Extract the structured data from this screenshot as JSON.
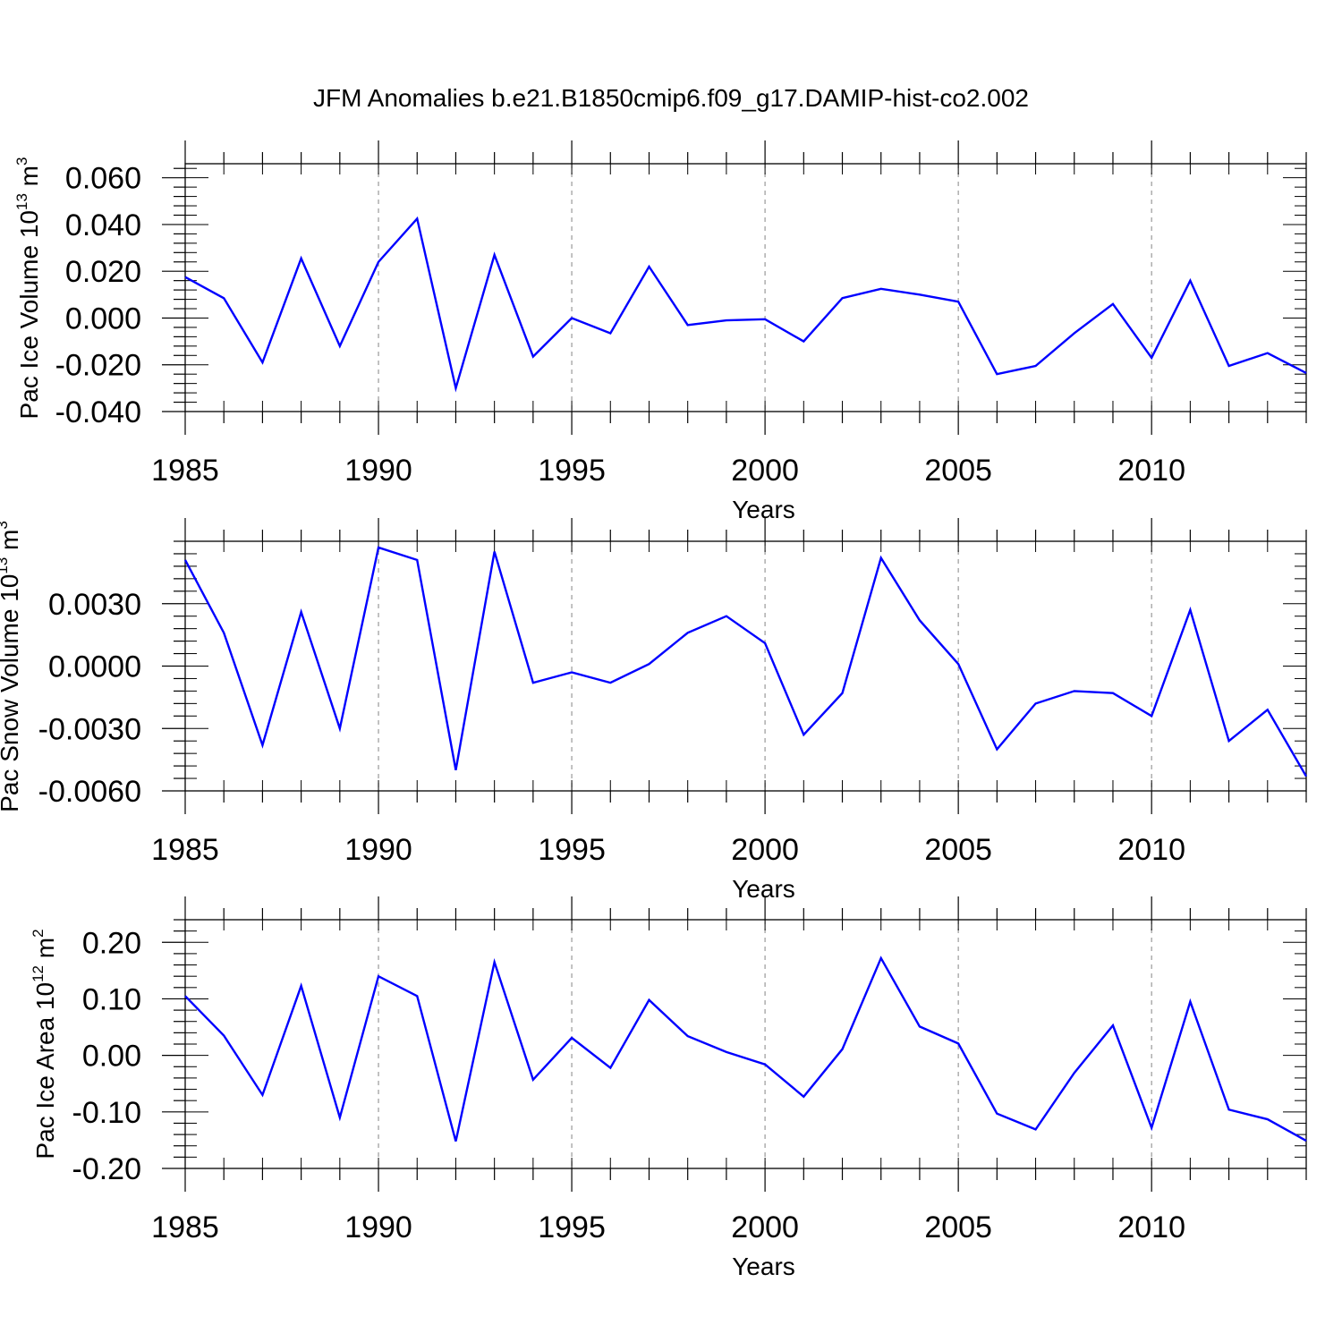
{
  "title": "JFM Anomalies b.e21.B1850cmip6.f09_g17.DAMIP-hist-co2.002",
  "colors": {
    "series": "#0000ff",
    "axis": "#000000",
    "grid": "#999999"
  },
  "chart_data": [
    {
      "type": "line",
      "ylabel": {
        "prefix": "Pac Ice Volume 10",
        "sup": "13",
        "mid": " m",
        "sup2": "3"
      },
      "xlabel": "Years",
      "xlim": [
        1985,
        2014
      ],
      "ylim": [
        -0.04,
        0.066
      ],
      "yticks": [
        -0.04,
        -0.02,
        0.0,
        0.02,
        0.04,
        0.06
      ],
      "ytick_labels": [
        "-0.040",
        "-0.020",
        "0.000",
        "0.020",
        "0.040",
        "0.060"
      ],
      "xticks": [
        1985,
        1990,
        1995,
        2000,
        2005,
        2010
      ],
      "xtick_labels": [
        "1985",
        "1990",
        "1995",
        "2000",
        "2005",
        "2010"
      ],
      "grid_x": [
        1990,
        1995,
        2000,
        2005,
        2010
      ],
      "x": [
        1985,
        1986,
        1987,
        1988,
        1989,
        1990,
        1991,
        1992,
        1993,
        1994,
        1995,
        1996,
        1997,
        1998,
        1999,
        2000,
        2001,
        2002,
        2003,
        2004,
        2005,
        2006,
        2007,
        2008,
        2009,
        2010,
        2011,
        2012,
        2013,
        2014
      ],
      "series": [
        {
          "values": [
            0.0175,
            0.0085,
            -0.019,
            0.0255,
            -0.012,
            0.024,
            0.0425,
            -0.03,
            0.027,
            -0.0165,
            0.0,
            -0.0065,
            0.022,
            -0.003,
            -0.001,
            -0.0005,
            -0.01,
            0.0085,
            0.0125,
            0.01,
            0.007,
            -0.024,
            -0.0205,
            -0.0065,
            0.006,
            -0.017,
            0.016,
            -0.0205,
            -0.015,
            -0.0235
          ]
        }
      ]
    },
    {
      "type": "line",
      "ylabel": {
        "prefix": "Pac Snow Volume 10",
        "sup": "13",
        "mid": " m",
        "sup2": "3"
      },
      "xlabel": "Years",
      "xlim": [
        1985,
        2014
      ],
      "ylim": [
        -0.006,
        0.006
      ],
      "yticks": [
        -0.006,
        -0.003,
        0.0,
        0.003
      ],
      "ytick_labels": [
        "-0.0060",
        "-0.0030",
        "0.0000",
        "0.0030"
      ],
      "xticks": [
        1985,
        1990,
        1995,
        2000,
        2005,
        2010
      ],
      "xtick_labels": [
        "1985",
        "1990",
        "1995",
        "2000",
        "2005",
        "2010"
      ],
      "grid_x": [
        1990,
        1995,
        2000,
        2005,
        2010
      ],
      "x": [
        1985,
        1986,
        1987,
        1988,
        1989,
        1990,
        1991,
        1992,
        1993,
        1994,
        1995,
        1996,
        1997,
        1998,
        1999,
        2000,
        2001,
        2002,
        2003,
        2004,
        2005,
        2006,
        2007,
        2008,
        2009,
        2010,
        2011,
        2012,
        2013,
        2014
      ],
      "series": [
        {
          "values": [
            0.0051,
            0.0016,
            -0.0038,
            0.0026,
            -0.003,
            0.0057,
            0.0051,
            -0.005,
            0.0055,
            -0.0008,
            -0.0003,
            -0.0008,
            0.0001,
            0.0016,
            0.0024,
            0.0011,
            -0.0033,
            -0.0013,
            0.0052,
            0.0022,
            0.0001,
            -0.004,
            -0.0018,
            -0.0012,
            -0.0013,
            -0.0024,
            0.0027,
            -0.0036,
            -0.0021,
            -0.0053
          ]
        }
      ]
    },
    {
      "type": "line",
      "ylabel": {
        "prefix": "Pac Ice Area 10",
        "sup": "12",
        "mid": " m",
        "sup2": "2"
      },
      "xlabel": "Years",
      "xlim": [
        1985,
        2014
      ],
      "ylim": [
        -0.2,
        0.24
      ],
      "yticks": [
        -0.2,
        -0.1,
        0.0,
        0.1,
        0.2
      ],
      "ytick_labels": [
        "-0.20",
        "-0.10",
        "0.00",
        "0.10",
        "0.20"
      ],
      "xticks": [
        1985,
        1990,
        1995,
        2000,
        2005,
        2010
      ],
      "xtick_labels": [
        "1985",
        "1990",
        "1995",
        "2000",
        "2005",
        "2010"
      ],
      "grid_x": [
        1990,
        1995,
        2000,
        2005,
        2010
      ],
      "x": [
        1985,
        1986,
        1987,
        1988,
        1989,
        1990,
        1991,
        1992,
        1993,
        1994,
        1995,
        1996,
        1997,
        1998,
        1999,
        2000,
        2001,
        2002,
        2003,
        2004,
        2005,
        2006,
        2007,
        2008,
        2009,
        2010,
        2011,
        2012,
        2013,
        2014
      ],
      "series": [
        {
          "values": [
            0.105,
            0.035,
            -0.07,
            0.123,
            -0.11,
            0.14,
            0.105,
            -0.152,
            0.165,
            -0.043,
            0.031,
            -0.022,
            0.098,
            0.034,
            0.006,
            -0.016,
            -0.073,
            0.011,
            0.172,
            0.051,
            0.021,
            -0.103,
            -0.131,
            -0.031,
            0.053,
            -0.128,
            0.095,
            -0.096,
            -0.113,
            -0.151
          ]
        }
      ]
    }
  ]
}
